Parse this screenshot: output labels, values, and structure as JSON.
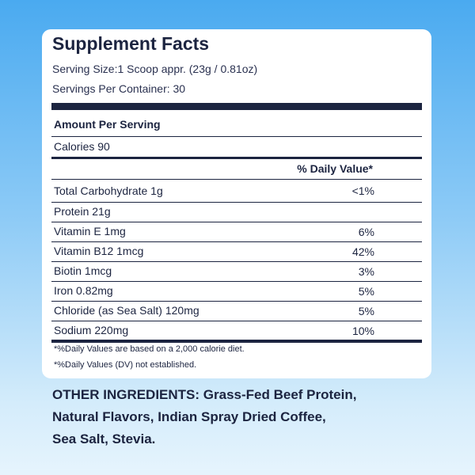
{
  "facts": {
    "title": "Supplement Facts",
    "serving_size": "Serving Size:1 Scoop appr. (23g / 0.81oz)",
    "servings_per_container": "Servings Per Container: 30",
    "amount_per_serving": "Amount Per Serving",
    "calories": "Calories 90",
    "dv_header": "% Daily Value*",
    "rows": [
      {
        "label": "Total Carbohydrate 1g",
        "dv": "<1%"
      },
      {
        "label": "Protein 21g",
        "dv": ""
      },
      {
        "label": "Vitamin E 1mg",
        "dv": "6%"
      },
      {
        "label": "Vitamin B12 1mcg",
        "dv": "42%"
      },
      {
        "label": "Biotin 1mcg",
        "dv": "3%"
      },
      {
        "label": "Iron 0.82mg",
        "dv": "5%"
      },
      {
        "label": "Chloride (as Sea Salt) 120mg",
        "dv": "5%"
      },
      {
        "label": "Sodium 220mg",
        "dv": "10%"
      }
    ],
    "footnotes": [
      "*%Daily Values are based on a 2,000 calorie diet.",
      "*%Daily Values (DV) not established."
    ]
  },
  "other_ingredients": {
    "lines": [
      "OTHER INGREDIENTS: Grass-Fed Beef Protein,",
      "Natural Flavors, Indian Spray Dried Coffee,",
      "Sea Salt, Stevia."
    ]
  },
  "colors": {
    "text": "#1c2440",
    "panel": "#ffffff",
    "background_top": "#4aaaf0",
    "background_bottom": "#e6f4fd"
  }
}
